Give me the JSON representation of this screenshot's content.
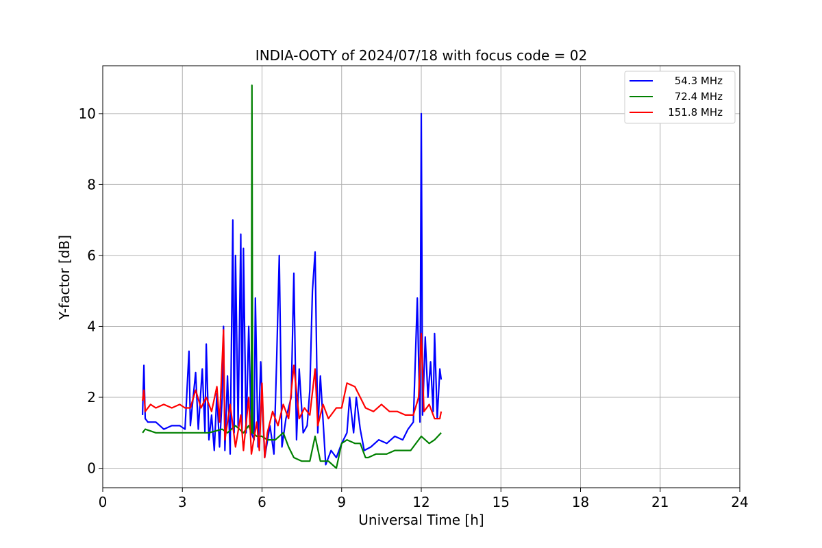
{
  "chart_data": {
    "type": "line",
    "title": "INDIA-OOTY of 2024/07/18 with focus code = 02",
    "xlabel": "Universal Time [h]",
    "ylabel": "Y-factor [dB]",
    "xlim": [
      0,
      24
    ],
    "ylim": [
      -0.55,
      11.35
    ],
    "xticks": [
      0,
      3,
      6,
      9,
      12,
      15,
      18,
      21,
      24
    ],
    "xtick_labels": [
      "0",
      "3",
      "6",
      "9",
      "12",
      "15",
      "18",
      "21",
      "24"
    ],
    "yticks": [
      0,
      2,
      4,
      6,
      8,
      10
    ],
    "ytick_labels": [
      "0",
      "2",
      "4",
      "6",
      "8",
      "10"
    ],
    "grid": true,
    "legend_position": "top-right",
    "series": [
      {
        "name": "54.3 MHz",
        "color": "#0000ff",
        "points": [
          [
            1.5,
            1.5
          ],
          [
            1.55,
            2.9
          ],
          [
            1.6,
            1.4
          ],
          [
            1.7,
            1.3
          ],
          [
            2.0,
            1.3
          ],
          [
            2.3,
            1.1
          ],
          [
            2.6,
            1.2
          ],
          [
            2.9,
            1.2
          ],
          [
            3.1,
            1.1
          ],
          [
            3.25,
            3.3
          ],
          [
            3.3,
            1.2
          ],
          [
            3.5,
            2.7
          ],
          [
            3.6,
            1.1
          ],
          [
            3.75,
            2.8
          ],
          [
            3.85,
            1.0
          ],
          [
            3.9,
            3.5
          ],
          [
            4.0,
            0.8
          ],
          [
            4.1,
            1.5
          ],
          [
            4.2,
            0.5
          ],
          [
            4.3,
            2.1
          ],
          [
            4.4,
            0.6
          ],
          [
            4.5,
            2.0
          ],
          [
            4.55,
            4.0
          ],
          [
            4.6,
            0.5
          ],
          [
            4.7,
            2.6
          ],
          [
            4.8,
            0.4
          ],
          [
            4.9,
            7.0
          ],
          [
            4.95,
            1.0
          ],
          [
            5.0,
            6.0
          ],
          [
            5.1,
            1.2
          ],
          [
            5.2,
            6.6
          ],
          [
            5.25,
            1.0
          ],
          [
            5.3,
            6.2
          ],
          [
            5.4,
            1.0
          ],
          [
            5.5,
            4.0
          ],
          [
            5.6,
            1.0
          ],
          [
            5.7,
            0.8
          ],
          [
            5.75,
            4.8
          ],
          [
            5.85,
            0.6
          ],
          [
            5.95,
            3.0
          ],
          [
            6.1,
            0.3
          ],
          [
            6.3,
            1.2
          ],
          [
            6.45,
            0.4
          ],
          [
            6.55,
            3.0
          ],
          [
            6.65,
            6.0
          ],
          [
            6.75,
            0.6
          ],
          [
            6.9,
            1.4
          ],
          [
            7.1,
            2.0
          ],
          [
            7.2,
            5.5
          ],
          [
            7.3,
            0.8
          ],
          [
            7.4,
            2.8
          ],
          [
            7.55,
            1.0
          ],
          [
            7.7,
            1.2
          ],
          [
            7.8,
            2.2
          ],
          [
            7.9,
            5.0
          ],
          [
            8.0,
            6.1
          ],
          [
            8.1,
            1.0
          ],
          [
            8.2,
            2.6
          ],
          [
            8.4,
            0.1
          ],
          [
            8.6,
            0.5
          ],
          [
            8.8,
            0.3
          ],
          [
            9.0,
            0.7
          ],
          [
            9.2,
            1.0
          ],
          [
            9.3,
            2.0
          ],
          [
            9.45,
            1.0
          ],
          [
            9.55,
            2.0
          ],
          [
            9.7,
            1.1
          ],
          [
            9.85,
            0.5
          ],
          [
            10.1,
            0.6
          ],
          [
            10.4,
            0.8
          ],
          [
            10.7,
            0.7
          ],
          [
            11.0,
            0.9
          ],
          [
            11.3,
            0.8
          ],
          [
            11.5,
            1.1
          ],
          [
            11.7,
            1.3
          ],
          [
            11.85,
            4.8
          ],
          [
            11.95,
            1.3
          ],
          [
            12.0,
            10.0
          ],
          [
            12.05,
            1.5
          ],
          [
            12.15,
            3.7
          ],
          [
            12.25,
            2.0
          ],
          [
            12.35,
            3.0
          ],
          [
            12.45,
            1.6
          ],
          [
            12.5,
            3.8
          ],
          [
            12.6,
            1.4
          ],
          [
            12.7,
            2.8
          ],
          [
            12.75,
            2.5
          ]
        ]
      },
      {
        "name": "72.4 MHz",
        "color": "#008000",
        "points": [
          [
            1.5,
            1.0
          ],
          [
            1.6,
            1.1
          ],
          [
            2.0,
            1.0
          ],
          [
            2.5,
            1.0
          ],
          [
            3.0,
            1.0
          ],
          [
            3.5,
            1.0
          ],
          [
            4.0,
            1.0
          ],
          [
            4.5,
            1.1
          ],
          [
            4.7,
            1.0
          ],
          [
            5.0,
            1.2
          ],
          [
            5.3,
            1.0
          ],
          [
            5.5,
            1.2
          ],
          [
            5.6,
            1.0
          ],
          [
            5.62,
            10.8
          ],
          [
            5.65,
            1.0
          ],
          [
            5.8,
            0.9
          ],
          [
            6.0,
            0.9
          ],
          [
            6.2,
            0.8
          ],
          [
            6.5,
            0.8
          ],
          [
            6.8,
            1.0
          ],
          [
            7.0,
            0.6
          ],
          [
            7.2,
            0.3
          ],
          [
            7.5,
            0.2
          ],
          [
            7.8,
            0.2
          ],
          [
            8.0,
            0.9
          ],
          [
            8.2,
            0.2
          ],
          [
            8.5,
            0.2
          ],
          [
            8.8,
            0.0
          ],
          [
            9.0,
            0.7
          ],
          [
            9.2,
            0.8
          ],
          [
            9.5,
            0.7
          ],
          [
            9.7,
            0.7
          ],
          [
            9.9,
            0.3
          ],
          [
            10.0,
            0.3
          ],
          [
            10.3,
            0.4
          ],
          [
            10.7,
            0.4
          ],
          [
            11.0,
            0.5
          ],
          [
            11.3,
            0.5
          ],
          [
            11.6,
            0.5
          ],
          [
            11.9,
            0.8
          ],
          [
            12.0,
            0.9
          ],
          [
            12.3,
            0.7
          ],
          [
            12.5,
            0.8
          ],
          [
            12.75,
            1.0
          ]
        ]
      },
      {
        "name": "151.8 MHz",
        "color": "#ff0000",
        "points": [
          [
            1.5,
            1.9
          ],
          [
            1.55,
            2.2
          ],
          [
            1.6,
            1.6
          ],
          [
            1.8,
            1.8
          ],
          [
            2.0,
            1.7
          ],
          [
            2.3,
            1.8
          ],
          [
            2.6,
            1.7
          ],
          [
            2.9,
            1.8
          ],
          [
            3.1,
            1.7
          ],
          [
            3.3,
            1.7
          ],
          [
            3.5,
            2.2
          ],
          [
            3.7,
            1.7
          ],
          [
            3.9,
            2.0
          ],
          [
            4.1,
            1.6
          ],
          [
            4.3,
            2.3
          ],
          [
            4.4,
            1.3
          ],
          [
            4.55,
            3.9
          ],
          [
            4.6,
            0.8
          ],
          [
            4.8,
            1.8
          ],
          [
            5.0,
            0.6
          ],
          [
            5.2,
            1.5
          ],
          [
            5.3,
            0.5
          ],
          [
            5.5,
            2.0
          ],
          [
            5.6,
            0.4
          ],
          [
            5.8,
            1.3
          ],
          [
            5.9,
            0.5
          ],
          [
            6.0,
            2.4
          ],
          [
            6.1,
            0.3
          ],
          [
            6.2,
            1.0
          ],
          [
            6.4,
            1.6
          ],
          [
            6.6,
            1.2
          ],
          [
            6.8,
            1.8
          ],
          [
            7.0,
            1.4
          ],
          [
            7.2,
            2.9
          ],
          [
            7.4,
            1.4
          ],
          [
            7.6,
            1.7
          ],
          [
            7.8,
            1.5
          ],
          [
            8.0,
            2.8
          ],
          [
            8.1,
            1.2
          ],
          [
            8.3,
            1.8
          ],
          [
            8.5,
            1.4
          ],
          [
            8.8,
            1.7
          ],
          [
            9.0,
            1.7
          ],
          [
            9.2,
            2.4
          ],
          [
            9.5,
            2.3
          ],
          [
            9.7,
            2.0
          ],
          [
            9.9,
            1.7
          ],
          [
            10.2,
            1.6
          ],
          [
            10.5,
            1.8
          ],
          [
            10.8,
            1.6
          ],
          [
            11.1,
            1.6
          ],
          [
            11.4,
            1.5
          ],
          [
            11.7,
            1.5
          ],
          [
            11.9,
            2.0
          ],
          [
            12.0,
            3.8
          ],
          [
            12.1,
            1.6
          ],
          [
            12.3,
            1.8
          ],
          [
            12.5,
            1.4
          ],
          [
            12.7,
            1.4
          ],
          [
            12.75,
            1.6
          ]
        ]
      }
    ]
  }
}
